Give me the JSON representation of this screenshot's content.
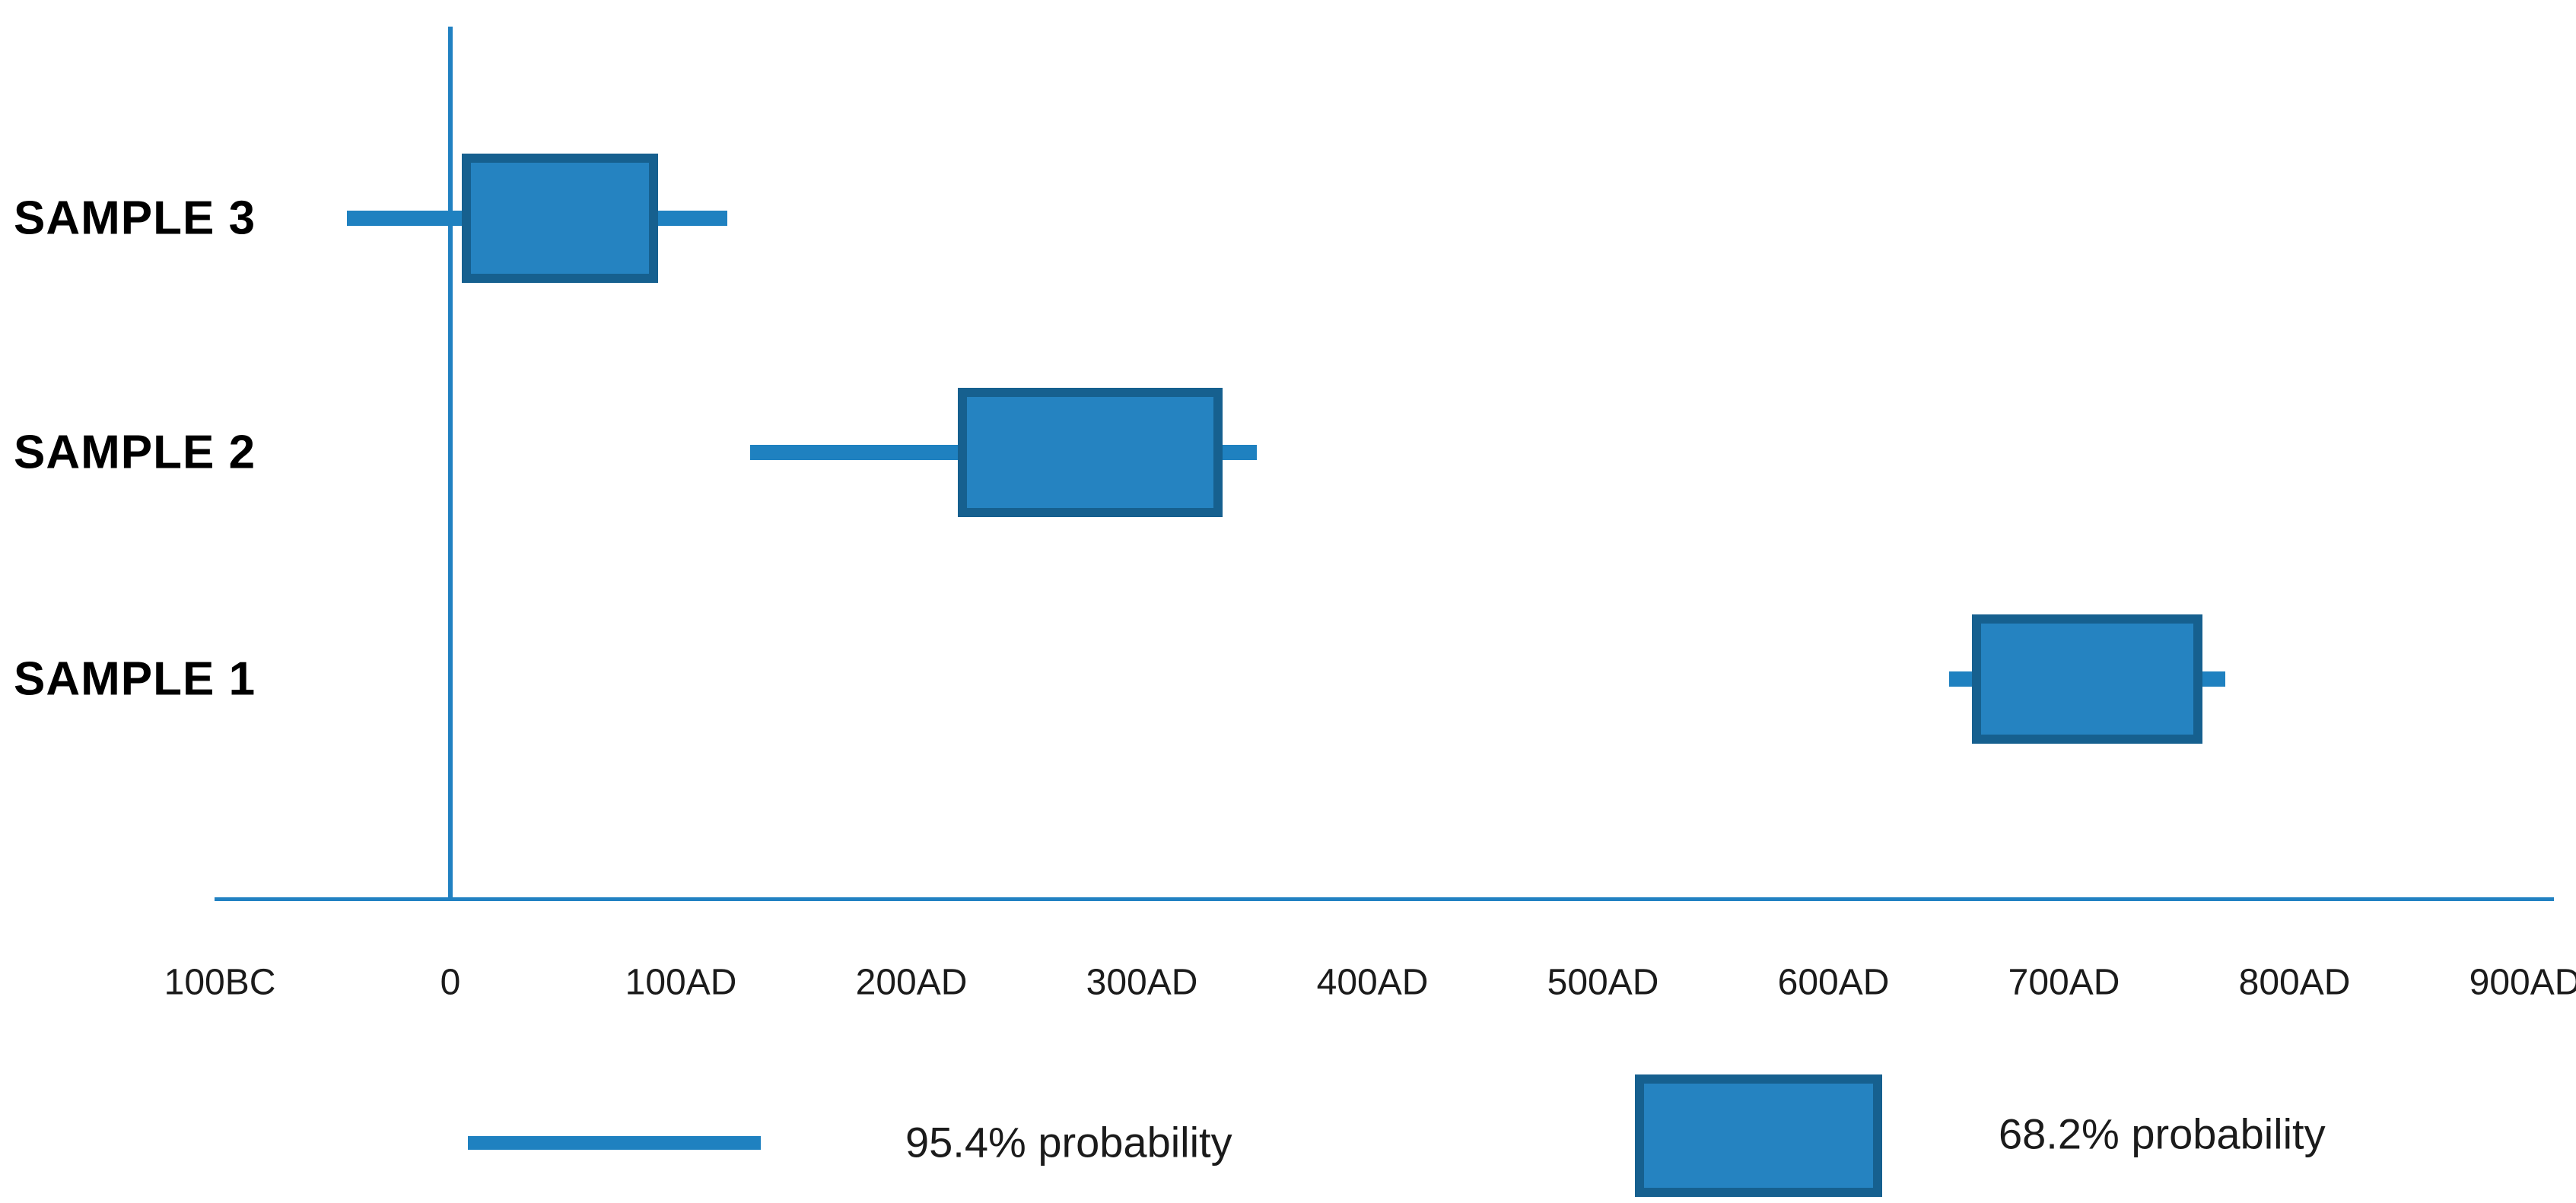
{
  "chart_data": {
    "type": "boxplot",
    "title": "",
    "orientation": "horizontal",
    "x_unit": "calendar years (negative = BC)",
    "axis": {
      "min": -100,
      "max": 900,
      "zero_line": true,
      "grid": false,
      "ticks": [
        {
          "value": -100,
          "label": "100BC"
        },
        {
          "value": 0,
          "label": "0"
        },
        {
          "value": 100,
          "label": "100AD"
        },
        {
          "value": 200,
          "label": "200AD"
        },
        {
          "value": 300,
          "label": "300AD"
        },
        {
          "value": 400,
          "label": "400AD"
        },
        {
          "value": 500,
          "label": "500AD"
        },
        {
          "value": 600,
          "label": "600AD"
        },
        {
          "value": 700,
          "label": "700AD"
        },
        {
          "value": 800,
          "label": "800AD"
        },
        {
          "value": 900,
          "label": "900AD"
        }
      ]
    },
    "samples": [
      {
        "label": "SAMPLE 3",
        "range_95_4": [
          -45,
          120
        ],
        "range_68_2": [
          5,
          90
        ]
      },
      {
        "label": "SAMPLE 2",
        "range_95_4": [
          130,
          350
        ],
        "range_68_2": [
          220,
          335
        ]
      },
      {
        "label": "SAMPLE 1",
        "range_95_4": [
          650,
          770
        ],
        "range_68_2": [
          660,
          760
        ]
      }
    ],
    "legend": [
      {
        "swatch": "line",
        "label": "95.4% probability"
      },
      {
        "swatch": "box",
        "label": "68.2% probability"
      }
    ],
    "colors": {
      "whisker_line": "#1f81c0",
      "box_fill": "#2583c1",
      "box_border": "#16608f",
      "axis_line": "#2181c2",
      "tick_text": "#1b1b1b",
      "label_text": "#000000"
    }
  }
}
